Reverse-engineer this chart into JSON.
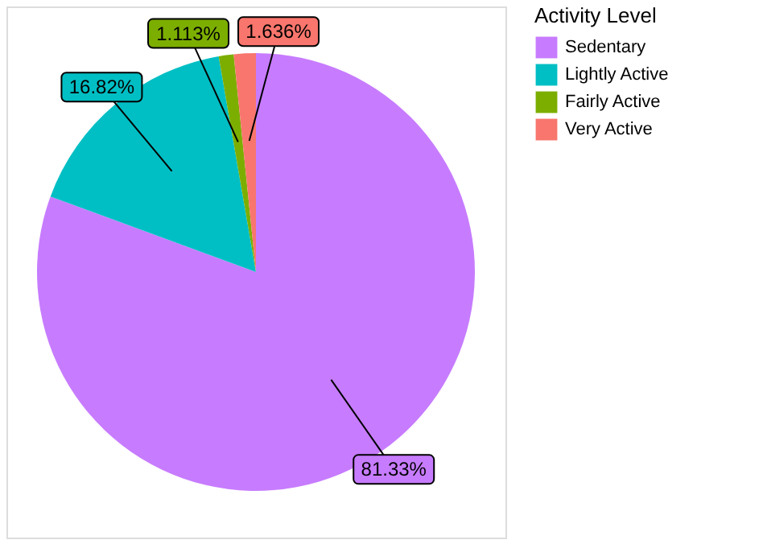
{
  "chart_data": {
    "type": "pie",
    "legend_title": "Activity Level",
    "legend": "right",
    "categories": [
      "Sedentary",
      "Lightly Active",
      "Fairly Active",
      "Very Active"
    ],
    "values": [
      81.33,
      16.82,
      1.113,
      1.636
    ],
    "colors": [
      "#c77cff",
      "#00bfc4",
      "#7cae00",
      "#f8766d"
    ],
    "value_labels": [
      "81.33%",
      "16.82%",
      "1.113%",
      "1.636%"
    ]
  }
}
